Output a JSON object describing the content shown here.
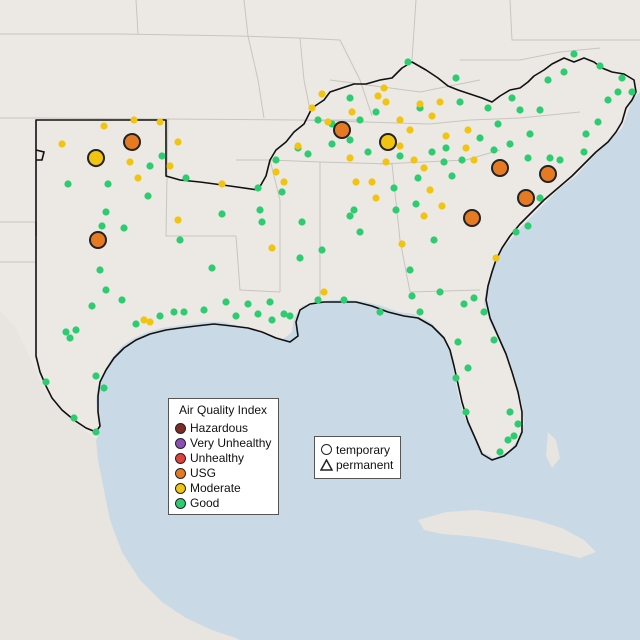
{
  "legend": {
    "title": "Air Quality Index",
    "categories": [
      {
        "label": "Hazardous",
        "color": "#7e2b27"
      },
      {
        "label": "Very Unhealthy",
        "color": "#8a4eb4"
      },
      {
        "label": "Unhealthy",
        "color": "#e0413b"
      },
      {
        "label": "USG",
        "color": "#e57a22"
      },
      {
        "label": "Moderate",
        "color": "#f1c40f"
      },
      {
        "label": "Good",
        "color": "#2ecc71"
      }
    ]
  },
  "shape_legend": {
    "temporary": "temporary",
    "permanent": "permanent"
  },
  "monitor_colors": {
    "good": "#2ecc71",
    "moderate": "#f1c40f",
    "usg": "#e57a22"
  }
}
